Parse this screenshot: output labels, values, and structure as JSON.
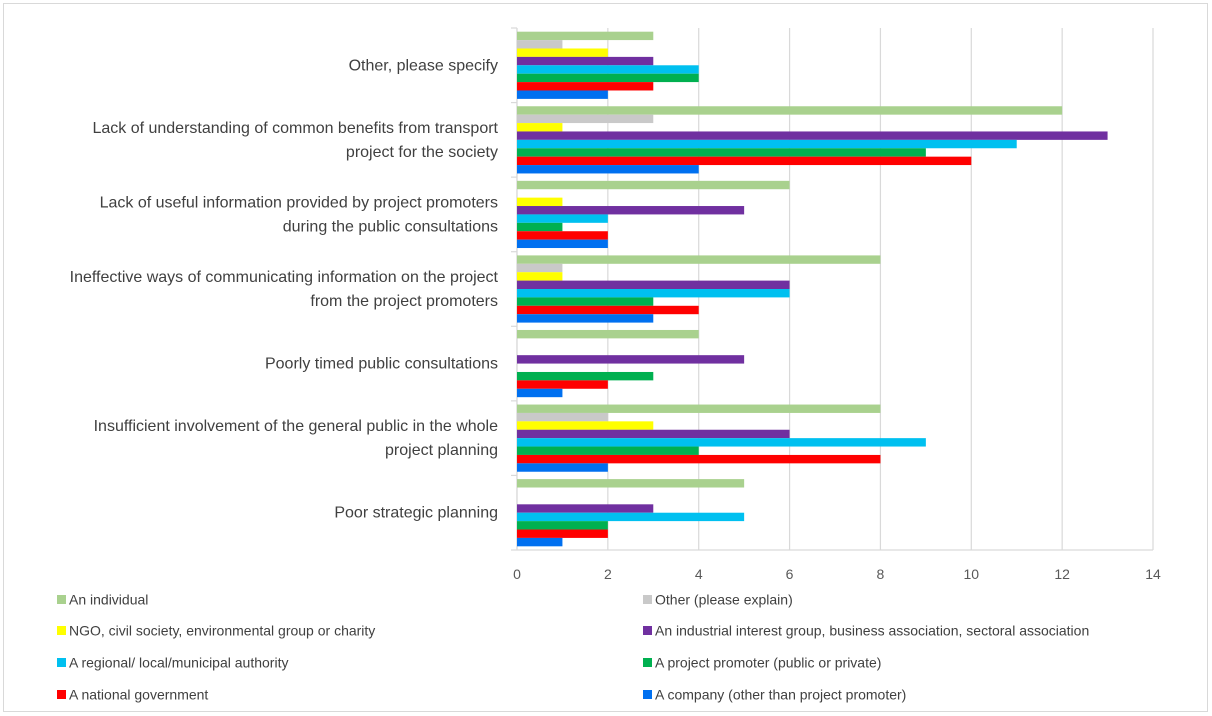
{
  "chart_data": {
    "type": "bar",
    "orientation": "horizontal",
    "categories": [
      "Other, please specify",
      "Lack of understanding of common benefits from transport project for the society",
      "Lack of useful information provided by project promoters during the public consultations",
      "Ineffective ways of communicating information on the project from the project promoters",
      "Poorly timed public consultations",
      "Insufficient involvement of the general public in the whole project planning",
      "Poor strategic planning"
    ],
    "category_lines": [
      [
        "Other, please specify"
      ],
      [
        "Lack of understanding of common benefits from transport",
        "project for the society"
      ],
      [
        "Lack of useful information provided by project promoters",
        "during the public consultations"
      ],
      [
        "Ineffective ways of communicating information on the project",
        "from the project promoters"
      ],
      [
        "Poorly timed public consultations"
      ],
      [
        "Insufficient involvement of the general public in the whole",
        "project planning"
      ],
      [
        "Poor strategic planning"
      ]
    ],
    "series": [
      {
        "name": "An individual",
        "color": "#a9d18e",
        "values": [
          3,
          12,
          6,
          8,
          4,
          8,
          5
        ]
      },
      {
        "name": "Other (please explain)",
        "color": "#c9c9c9",
        "values": [
          1,
          3,
          0,
          1,
          0,
          2,
          0
        ]
      },
      {
        "name": "NGO, civil society, environmental group or charity",
        "color": "#ffff00",
        "values": [
          2,
          1,
          1,
          1,
          0,
          3,
          0
        ]
      },
      {
        "name": "An industrial interest group, business association, sectoral association",
        "color": "#7030a0",
        "values": [
          3,
          13,
          5,
          6,
          5,
          6,
          3
        ]
      },
      {
        "name": "A regional/ local/municipal authority",
        "color": "#00c0f0",
        "values": [
          4,
          11,
          2,
          6,
          0,
          9,
          5
        ]
      },
      {
        "name": "A project promoter (public or private)",
        "color": "#00b050",
        "values": [
          4,
          9,
          1,
          3,
          3,
          4,
          2
        ]
      },
      {
        "name": "A national government",
        "color": "#ff0000",
        "values": [
          3,
          10,
          2,
          4,
          2,
          8,
          2
        ]
      },
      {
        "name": "A company (other than project promoter)",
        "color": "#0070f0",
        "values": [
          2,
          4,
          2,
          3,
          1,
          2,
          1
        ]
      }
    ],
    "xlim": [
      0,
      14
    ],
    "xticks": [
      0,
      2,
      4,
      6,
      8,
      10,
      12,
      14
    ],
    "grid": true,
    "legend_position": "bottom",
    "title": "",
    "xlabel": "",
    "ylabel": ""
  }
}
